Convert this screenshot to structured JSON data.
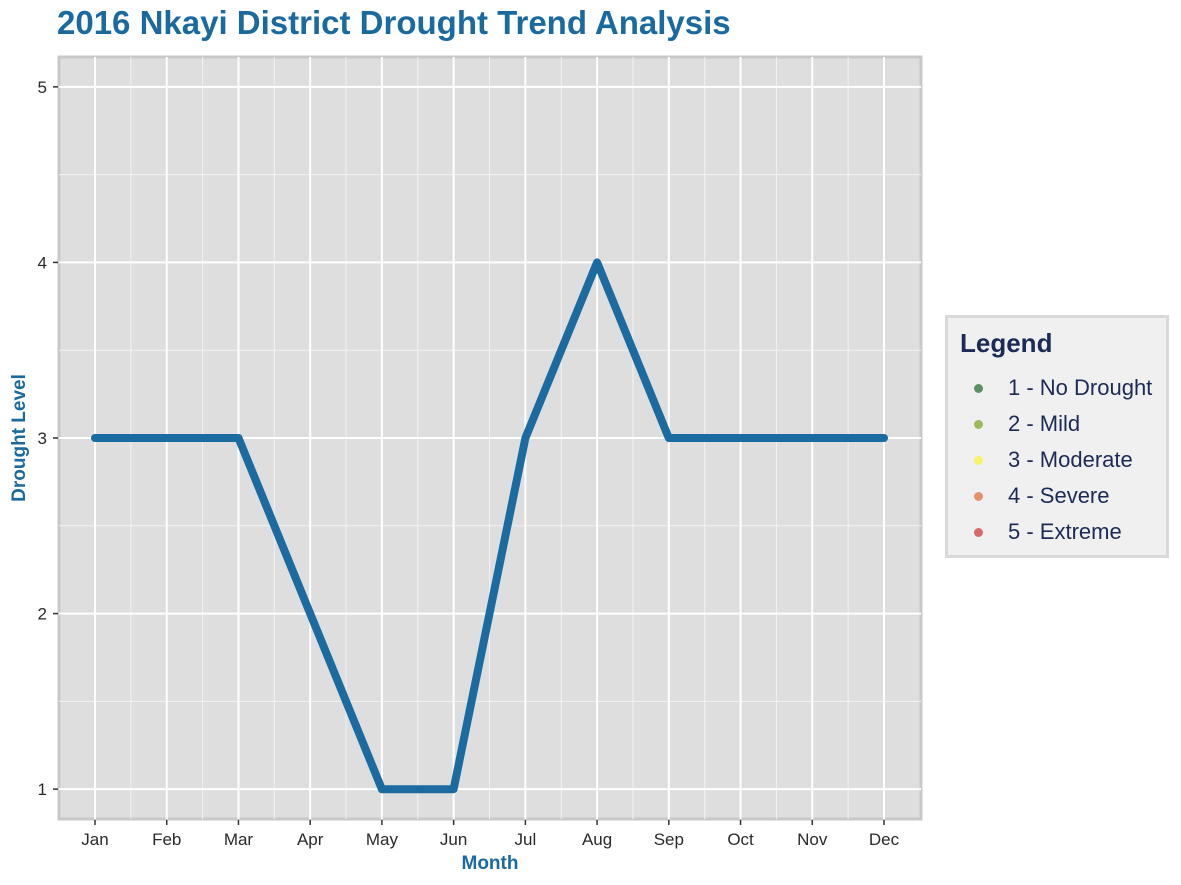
{
  "chart_data": {
    "type": "line",
    "title": "2016 Nkayi District Drought Trend Analysis",
    "xlabel": "Month",
    "ylabel": "Drought Level",
    "categories": [
      "Jan",
      "Feb",
      "Mar",
      "Apr",
      "May",
      "Jun",
      "Jul",
      "Aug",
      "Sep",
      "Oct",
      "Nov",
      "Dec"
    ],
    "series": [
      {
        "values": [
          3,
          3,
          3,
          2,
          1,
          1,
          3,
          4,
          3,
          3,
          3,
          3
        ],
        "color": "#1b6aa0"
      }
    ],
    "ylim": [
      0.83,
      5.17
    ],
    "yticks": [
      1,
      2,
      3,
      4,
      5
    ],
    "grid": true,
    "panel_background": "#dedede",
    "legend": {
      "title": "Legend",
      "position": "right",
      "items": [
        {
          "label": "1 - No Drought",
          "color": "#5d8f62"
        },
        {
          "label": "2 - Mild",
          "color": "#9cba5e"
        },
        {
          "label": "3 - Moderate",
          "color": "#f7f26a"
        },
        {
          "label": "4 - Severe",
          "color": "#e3936a"
        },
        {
          "label": "5 - Extreme",
          "color": "#d46a6a"
        }
      ]
    }
  }
}
